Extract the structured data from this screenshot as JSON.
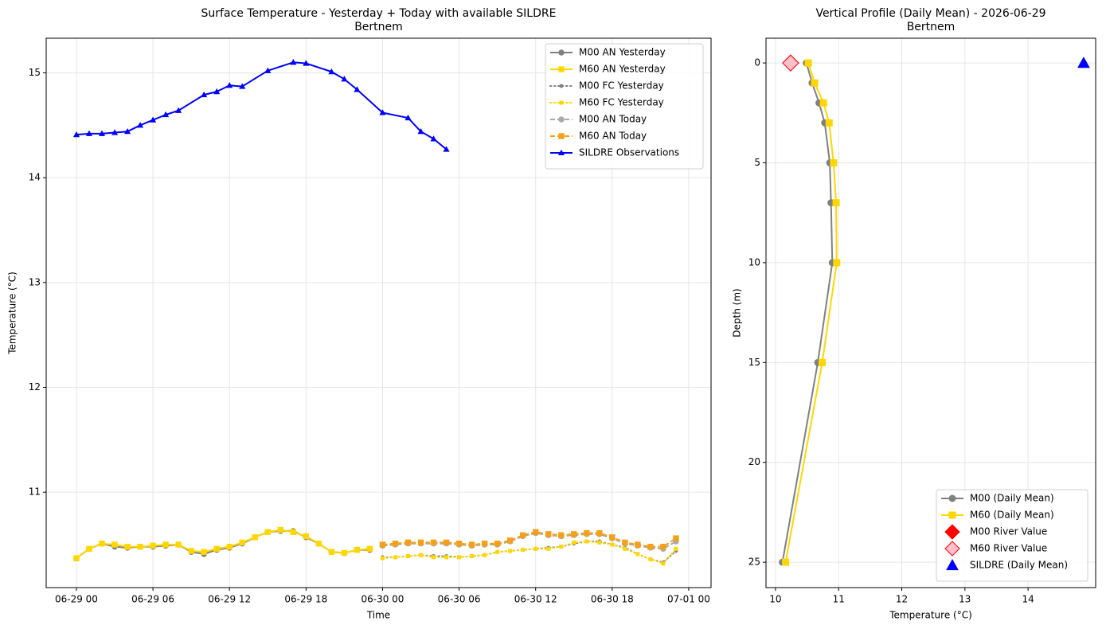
{
  "chart_data": [
    {
      "type": "line",
      "title": "Surface Temperature - Yesterday + Today with available SILDRE",
      "subtitle": "Bertnem",
      "xlabel": "Time",
      "ylabel": "Temperature (°C)",
      "xlim": [
        -2.37,
        49.75
      ],
      "xticks": [
        {
          "value": 0,
          "label": "06-29 00"
        },
        {
          "value": 6,
          "label": "06-29 06"
        },
        {
          "value": 12,
          "label": "06-29 12"
        },
        {
          "value": 18,
          "label": "06-29 18"
        },
        {
          "value": 24,
          "label": "06-30 00"
        },
        {
          "value": 30,
          "label": "06-30 06"
        },
        {
          "value": 36,
          "label": "06-30 12"
        },
        {
          "value": 42,
          "label": "06-30 18"
        },
        {
          "value": 48,
          "label": "07-01 00"
        }
      ],
      "ylim": [
        10.09,
        15.33
      ],
      "yticks": [
        11,
        12,
        13,
        14,
        15
      ],
      "grid": true,
      "legend": "upper right",
      "series": [
        {
          "name": "M00 AN Yesterday",
          "color": "#808080",
          "line": "solid",
          "marker": "circle",
          "x": [
            0,
            1,
            2,
            3,
            4,
            5,
            6,
            7,
            8,
            9,
            10,
            11,
            12,
            13,
            14,
            15,
            16,
            17,
            18,
            19,
            20,
            21,
            22,
            23
          ],
          "values": [
            10.37,
            10.46,
            10.51,
            10.48,
            10.47,
            10.48,
            10.48,
            10.49,
            10.5,
            10.43,
            10.41,
            10.45,
            10.47,
            10.51,
            10.57,
            10.62,
            10.63,
            10.63,
            10.57,
            10.51,
            10.43,
            10.42,
            10.45,
            10.45
          ]
        },
        {
          "name": "M60 AN Yesterday",
          "color": "#ffd700",
          "line": "solid",
          "marker": "square",
          "x": [
            0,
            1,
            2,
            3,
            4,
            5,
            6,
            7,
            8,
            9,
            10,
            11,
            12,
            13,
            14,
            15,
            16,
            17,
            18,
            19,
            20,
            21,
            22,
            23
          ],
          "values": [
            10.37,
            10.46,
            10.51,
            10.5,
            10.48,
            10.48,
            10.49,
            10.5,
            10.5,
            10.44,
            10.43,
            10.46,
            10.48,
            10.52,
            10.57,
            10.62,
            10.64,
            10.62,
            10.58,
            10.51,
            10.43,
            10.42,
            10.45,
            10.46
          ]
        },
        {
          "name": "M00 FC Yesterday",
          "color": "#808080",
          "line": "dotted",
          "marker": "circle",
          "x": [
            24,
            25,
            26,
            27,
            28,
            29,
            30,
            31,
            32,
            33,
            34,
            35,
            36,
            37,
            38,
            39,
            40,
            41,
            42,
            43,
            44,
            45,
            46,
            47
          ],
          "values": [
            10.38,
            10.38,
            10.39,
            10.4,
            10.39,
            10.39,
            10.38,
            10.39,
            10.4,
            10.43,
            10.44,
            10.45,
            10.46,
            10.47,
            10.48,
            10.51,
            10.53,
            10.53,
            10.5,
            10.47,
            10.41,
            10.36,
            10.33,
            10.44
          ]
        },
        {
          "name": "M60 FC Yesterday",
          "color": "#ffd700",
          "line": "dotted",
          "marker": "square",
          "x": [
            24,
            25,
            26,
            27,
            28,
            29,
            30,
            31,
            32,
            33,
            34,
            35,
            36,
            37,
            38,
            39,
            40,
            41,
            42,
            43,
            44,
            45,
            46,
            47
          ],
          "values": [
            10.37,
            10.38,
            10.39,
            10.4,
            10.38,
            10.38,
            10.38,
            10.39,
            10.4,
            10.43,
            10.44,
            10.45,
            10.46,
            10.46,
            10.48,
            10.52,
            10.53,
            10.52,
            10.5,
            10.46,
            10.41,
            10.36,
            10.32,
            10.46
          ]
        },
        {
          "name": "M00 AN Today",
          "color": "#a9a9a9",
          "line": "dashed",
          "marker": "circle",
          "x": [
            24,
            25,
            26,
            27,
            28,
            29,
            30,
            31,
            32,
            33,
            34,
            35,
            36,
            37,
            38,
            39,
            40,
            41,
            42,
            43,
            44,
            45,
            46,
            47
          ],
          "values": [
            10.49,
            10.5,
            10.51,
            10.51,
            10.51,
            10.51,
            10.5,
            10.49,
            10.5,
            10.5,
            10.53,
            10.58,
            10.61,
            10.59,
            10.58,
            10.59,
            10.6,
            10.6,
            10.56,
            10.51,
            10.49,
            10.47,
            10.46,
            10.53
          ]
        },
        {
          "name": "M60 AN Today",
          "color": "#f5a01a",
          "line": "dashed",
          "marker": "square",
          "x": [
            24,
            25,
            26,
            27,
            28,
            29,
            30,
            31,
            32,
            33,
            34,
            35,
            36,
            37,
            38,
            39,
            40,
            41,
            42,
            43,
            44,
            45,
            46,
            47
          ],
          "values": [
            10.5,
            10.51,
            10.52,
            10.52,
            10.52,
            10.52,
            10.51,
            10.5,
            10.51,
            10.51,
            10.54,
            10.59,
            10.62,
            10.6,
            10.59,
            10.6,
            10.61,
            10.61,
            10.57,
            10.52,
            10.5,
            10.48,
            10.48,
            10.56
          ]
        },
        {
          "name": "SILDRE Observations",
          "color": "#0000ff",
          "line": "solid",
          "marker": "triangle",
          "x": [
            0,
            1,
            2,
            3,
            4,
            5,
            6,
            7,
            8,
            10,
            11,
            12,
            13,
            15,
            17,
            18,
            20,
            21,
            22,
            24,
            26,
            27,
            28,
            29
          ],
          "values": [
            14.41,
            14.42,
            14.42,
            14.43,
            14.44,
            14.5,
            14.55,
            14.6,
            14.64,
            14.79,
            14.82,
            14.88,
            14.87,
            15.02,
            15.1,
            15.09,
            15.01,
            14.94,
            14.84,
            14.62,
            14.57,
            14.44,
            14.37,
            14.27
          ]
        }
      ]
    },
    {
      "type": "profile",
      "title": "Vertical Profile (Daily Mean) - 2026-06-29",
      "subtitle": "Bertnem",
      "xlabel": "Temperature (°C)",
      "ylabel": "Depth (m)",
      "xlim": [
        9.85,
        15.07
      ],
      "xticks": [
        10,
        11,
        12,
        13,
        14
      ],
      "ylim": [
        -1.24,
        26.27
      ],
      "y_inverted": true,
      "yticks": [
        0,
        5,
        10,
        15,
        20,
        25
      ],
      "grid": true,
      "legend": "lower right",
      "series": [
        {
          "name": "M00 (Daily Mean)",
          "color": "#808080",
          "line": "solid",
          "marker": "circle",
          "depths": [
            0,
            1,
            2,
            3,
            5,
            7,
            10,
            15,
            25
          ],
          "values": [
            10.49,
            10.58,
            10.69,
            10.78,
            10.86,
            10.88,
            10.9,
            10.67,
            10.11
          ]
        },
        {
          "name": "M60 (Daily Mean)",
          "color": "#ffd700",
          "line": "solid",
          "marker": "square",
          "depths": [
            0,
            1,
            2,
            3,
            5,
            7,
            10,
            15,
            25
          ],
          "values": [
            10.52,
            10.62,
            10.76,
            10.85,
            10.92,
            10.96,
            10.97,
            10.74,
            10.16
          ]
        },
        {
          "name": "M00 River Value",
          "color": "#ff0000",
          "line": null,
          "marker": "diamond",
          "depths": [
            0
          ],
          "values": [
            10.24
          ]
        },
        {
          "name": "M60 River Value",
          "color": "#ffc0cb",
          "edge": "#ff0000",
          "line": null,
          "marker": "diamond",
          "depths": [
            0
          ],
          "values": [
            10.24
          ]
        },
        {
          "name": "SILDRE (Daily Mean)",
          "color": "#0000ff",
          "line": null,
          "marker": "triangle",
          "depths": [
            0
          ],
          "values": [
            14.88
          ]
        }
      ]
    }
  ]
}
